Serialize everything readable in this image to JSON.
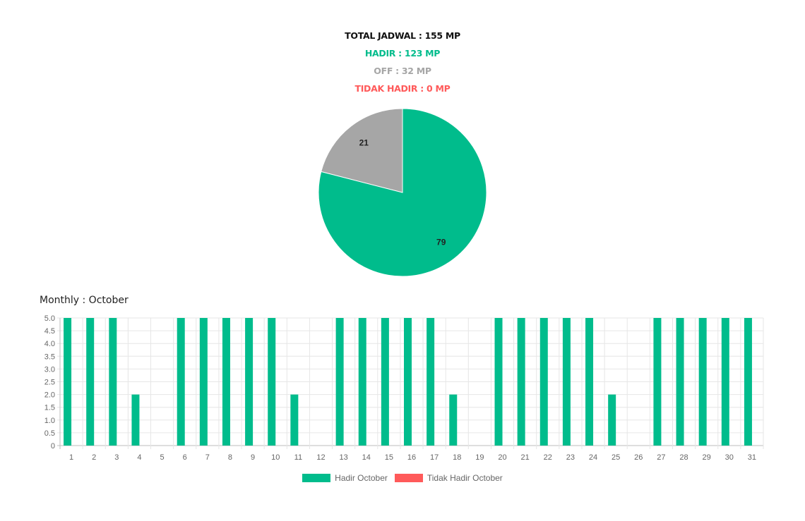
{
  "summary": {
    "total": "TOTAL JADWAL : 155 MP",
    "hadir": "HADIR : 123 MP",
    "off": "OFF : 32 MP",
    "tidak_hadir": "TIDAK HADIR : 0 MP"
  },
  "colors": {
    "total": "#111111",
    "hadir": "#00BC8C",
    "off": "#A6A6A6",
    "tidak_hadir": "#FF5A5A"
  },
  "monthly_title": "Monthly : October",
  "legend": [
    {
      "label": "Hadir October",
      "color": "#00BC8C"
    },
    {
      "label": "Tidak Hadir October",
      "color": "#FF5A5A"
    }
  ],
  "chart_data": [
    {
      "type": "pie",
      "values": [
        79,
        21
      ],
      "labels": [
        "79",
        "21"
      ],
      "colors": [
        "#00BC8C",
        "#A6A6A6"
      ]
    },
    {
      "type": "bar",
      "categories": [
        "1",
        "2",
        "3",
        "4",
        "5",
        "6",
        "7",
        "8",
        "9",
        "10",
        "11",
        "12",
        "13",
        "14",
        "15",
        "16",
        "17",
        "18",
        "19",
        "20",
        "21",
        "22",
        "23",
        "24",
        "25",
        "26",
        "27",
        "28",
        "29",
        "30",
        "31"
      ],
      "series": [
        {
          "name": "Hadir October",
          "color": "#00BC8C",
          "values": [
            5,
            5,
            5,
            2,
            0,
            5,
            5,
            5,
            5,
            5,
            2,
            0,
            5,
            5,
            5,
            5,
            5,
            2,
            0,
            5,
            5,
            5,
            5,
            5,
            2,
            0,
            5,
            5,
            5,
            5,
            5
          ]
        },
        {
          "name": "Tidak Hadir October",
          "color": "#FF5A5A",
          "values": [
            0,
            0,
            0,
            0,
            0,
            0,
            0,
            0,
            0,
            0,
            0,
            0,
            0,
            0,
            0,
            0,
            0,
            0,
            0,
            0,
            0,
            0,
            0,
            0,
            0,
            0,
            0,
            0,
            0,
            0,
            0
          ]
        }
      ],
      "ylim": [
        0,
        5
      ],
      "yticks": [
        "0",
        "0.5",
        "1.0",
        "1.5",
        "2.0",
        "2.5",
        "3.0",
        "3.5",
        "4.0",
        "4.5",
        "5.0"
      ],
      "grid": true,
      "legend_position": "bottom"
    }
  ]
}
